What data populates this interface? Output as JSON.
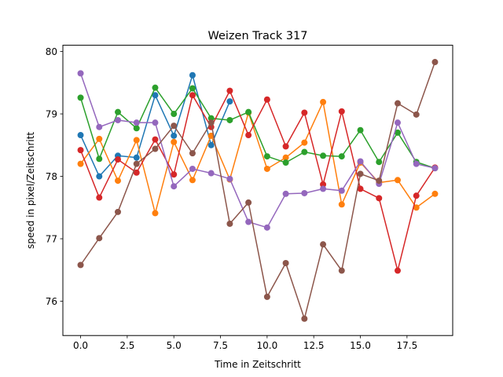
{
  "chart_data": {
    "type": "line",
    "title": "Weizen Track 317",
    "xlabel": "Time in Zeitschritt",
    "ylabel": "speed in pixel/Zeitschritt",
    "xlim": [
      -0.95,
      19.95
    ],
    "ylim": [
      75.45,
      80.1
    ],
    "xticks": [
      0.0,
      2.5,
      5.0,
      7.5,
      10.0,
      12.5,
      15.0,
      17.5
    ],
    "xtick_labels": [
      "0.0",
      "2.5",
      "5.0",
      "7.5",
      "10.0",
      "12.5",
      "15.0",
      "17.5"
    ],
    "yticks": [
      76,
      77,
      78,
      79,
      80
    ],
    "ytick_labels": [
      "76",
      "77",
      "78",
      "79",
      "80"
    ],
    "grid": false,
    "series": [
      {
        "color": "#1f77b4",
        "x": [
          0,
          1,
          2,
          3,
          4,
          5,
          6,
          7,
          8
        ],
        "values": [
          78.66,
          78.0,
          78.33,
          78.3,
          79.3,
          78.65,
          79.62,
          78.5,
          79.2
        ]
      },
      {
        "color": "#ff7f0e",
        "x": [
          0,
          1,
          2,
          3,
          4,
          5,
          6,
          7,
          8,
          9,
          10,
          11,
          12,
          13,
          14,
          15,
          16,
          17,
          18,
          19
        ],
        "values": [
          78.2,
          78.6,
          77.93,
          78.58,
          77.41,
          78.55,
          77.94,
          78.65,
          77.95,
          79.02,
          78.12,
          78.3,
          78.54,
          79.19,
          77.55,
          78.22,
          77.9,
          77.94,
          77.5,
          77.72
        ]
      },
      {
        "color": "#2ca02c",
        "x": [
          0,
          1,
          2,
          3,
          4,
          5,
          6,
          7,
          8,
          9,
          10,
          11,
          12,
          13,
          14,
          15,
          16,
          17,
          18,
          19
        ],
        "values": [
          79.26,
          78.28,
          79.03,
          78.77,
          79.42,
          79.0,
          79.41,
          78.93,
          78.9,
          79.03,
          78.32,
          78.22,
          78.39,
          78.33,
          78.32,
          78.74,
          78.23,
          78.7,
          78.23,
          78.13
        ]
      },
      {
        "color": "#d62728",
        "x": [
          0,
          1,
          2,
          3,
          4,
          5,
          6,
          7,
          8,
          9,
          10,
          11,
          12,
          13,
          14,
          15,
          16,
          17,
          18,
          19
        ],
        "values": [
          78.42,
          77.66,
          78.27,
          78.06,
          78.59,
          78.03,
          79.3,
          78.79,
          79.37,
          78.66,
          79.23,
          78.48,
          79.02,
          77.87,
          79.04,
          77.8,
          77.65,
          76.49,
          77.69,
          78.14
        ]
      },
      {
        "color": "#9467bd",
        "x": [
          0,
          1,
          2,
          3,
          4,
          5,
          6,
          7,
          8,
          9,
          10,
          11,
          12,
          13,
          14,
          15,
          16,
          17,
          18,
          19
        ],
        "values": [
          79.65,
          78.79,
          78.9,
          78.86,
          78.86,
          77.84,
          78.12,
          78.05,
          77.96,
          77.27,
          77.18,
          77.72,
          77.73,
          77.8,
          77.77,
          78.24,
          77.88,
          78.86,
          78.2,
          78.13
        ]
      },
      {
        "color": "#8c564b",
        "x": [
          0,
          1,
          2,
          3,
          4,
          5,
          6,
          7,
          8,
          9,
          10,
          11,
          12,
          13,
          14,
          15,
          16,
          17,
          18,
          19
        ],
        "values": [
          76.58,
          77.01,
          77.43,
          78.2,
          78.44,
          78.81,
          78.37,
          78.86,
          77.24,
          77.58,
          76.07,
          76.61,
          75.72,
          76.91,
          76.49,
          78.04,
          77.93,
          79.17,
          78.99,
          79.83
        ]
      }
    ]
  }
}
